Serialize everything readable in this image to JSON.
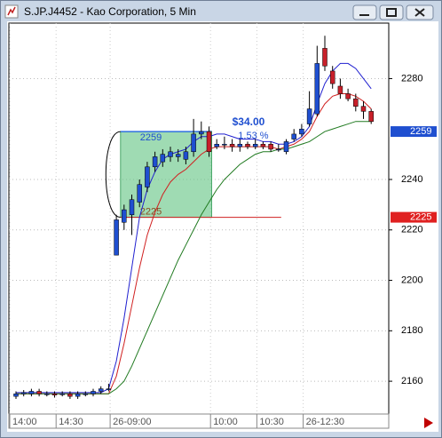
{
  "chart_data": {
    "type": "candlestick",
    "title": "S.JP.J4452 - Kao Corporation, 5 Min",
    "categories": [
      "14:00",
      null,
      null,
      null,
      null,
      null,
      "14:30",
      null,
      null,
      null,
      null,
      null,
      null,
      "26-09:00",
      null,
      null,
      null,
      null,
      null,
      null,
      null,
      null,
      null,
      null,
      null,
      null,
      "10:00",
      null,
      null,
      null,
      null,
      null,
      "10:30",
      null,
      null,
      null,
      null,
      null,
      "26-12:30",
      null,
      null,
      null,
      null,
      null,
      null,
      null,
      null
    ],
    "open": [
      2154,
      2155,
      2155,
      2156,
      2155,
      2155,
      2155,
      2155,
      2154,
      2155,
      2155,
      2156,
      2157,
      2210,
      2223,
      2226,
      2231,
      2237,
      2245,
      2247,
      2249,
      2249,
      2248,
      2251,
      2258,
      2259,
      2253,
      2254,
      2254,
      2253,
      2254,
      2253,
      2254,
      2254,
      2252,
      2251,
      2256,
      2258,
      2262,
      2266,
      2292,
      2283,
      2277,
      2274,
      2272,
      2269,
      2267
    ],
    "high": [
      2156,
      2156.5,
      2157,
      2157,
      2156,
      2156,
      2156,
      2156,
      2156,
      2156,
      2157,
      2158,
      2159,
      2226,
      2230,
      2234,
      2240,
      2247,
      2251,
      2252,
      2253,
      2252,
      2253,
      2264,
      2263,
      2261,
      2256,
      2257,
      2256,
      2256,
      2255,
      2256,
      2255,
      2255,
      2254,
      2256,
      2260,
      2262,
      2275,
      2293,
      2297,
      2285,
      2280,
      2276,
      2274,
      2271,
      2268
    ],
    "low": [
      2153,
      2154,
      2154,
      2154,
      2154,
      2153.5,
      2154,
      2153,
      2153,
      2154,
      2154,
      2155,
      2156,
      2210,
      2220,
      2218,
      2229,
      2235,
      2243,
      2245,
      2247,
      2247,
      2246,
      2249,
      2256,
      2249,
      2252,
      2252,
      2251,
      2251,
      2252,
      2252,
      2252,
      2251,
      2251,
      2250,
      2255,
      2257,
      2261,
      2265,
      2283,
      2276,
      2272,
      2271,
      2267,
      2264,
      2262
    ],
    "close": [
      2155,
      2155.5,
      2156,
      2155,
      2155,
      2154.5,
      2155,
      2154,
      2155,
      2155,
      2156,
      2157,
      2157,
      2224,
      2228,
      2232,
      2238,
      2245,
      2249,
      2250,
      2251,
      2250,
      2251,
      2258,
      2259,
      2251,
      2254,
      2254,
      2253,
      2254,
      2253,
      2254,
      2253,
      2252,
      2252,
      2255,
      2258,
      2260,
      2268,
      2286,
      2285,
      2278,
      2274,
      2272,
      2269,
      2267,
      2263
    ],
    "up_color": "#1f4fd0",
    "down_color": "#c8202a",
    "overlays": [
      {
        "color": "#2020d0",
        "values": [
          2155.5,
          2155.5,
          2155.5,
          2155.5,
          2155.5,
          2155.5,
          2155.5,
          2155.5,
          2155.5,
          2155.5,
          2155.5,
          2155.5,
          2157,
          2168,
          2185,
          2205,
          2225,
          2236,
          2243,
          2248,
          2250,
          2251,
          2252,
          2255,
          2257,
          2257,
          2258,
          2258,
          2257,
          2256,
          2256,
          2256,
          2255,
          2255,
          2254,
          2254,
          2255,
          2257,
          2261,
          2270,
          2278,
          2283,
          2286,
          2286,
          2284,
          2280,
          2276
        ]
      },
      {
        "color": "#d02020",
        "values": [
          2155,
          2155,
          2155,
          2155,
          2155,
          2155,
          2155,
          2155,
          2155,
          2155,
          2155,
          2155,
          2155,
          2162,
          2175,
          2190,
          2205,
          2218,
          2227,
          2234,
          2239,
          2242,
          2244,
          2247,
          2250,
          2252,
          2253,
          2253,
          2253,
          2253,
          2253,
          2253,
          2253,
          2253,
          2252,
          2253,
          2254,
          2256,
          2259,
          2265,
          2270,
          2273,
          2274,
          2274,
          2273,
          2271,
          2268
        ]
      },
      {
        "color": "#207a20",
        "values": [
          2155,
          2155,
          2155,
          2155,
          2155,
          2155,
          2155,
          2155,
          2155,
          2155,
          2155,
          2155,
          2155,
          2157,
          2160,
          2166,
          2173,
          2180,
          2187,
          2194,
          2201,
          2208,
          2214,
          2220,
          2226,
          2231,
          2236,
          2240,
          2243,
          2246,
          2248,
          2250,
          2251,
          2251,
          2252,
          2252,
          2253,
          2254,
          2255,
          2257,
          2259,
          2260,
          2261,
          2262,
          2263,
          2263,
          2263
        ]
      }
    ],
    "ylim": [
      2147,
      2302
    ],
    "yticks": [
      2160,
      2180,
      2200,
      2220,
      2240,
      2280
    ],
    "grid": true,
    "range": {
      "high": 2259,
      "low": 2225,
      "change": "$34.00",
      "change_pct": "1.53 %"
    },
    "price_markers": [
      {
        "value": 2259,
        "color": "#1f4fd0"
      },
      {
        "value": 2225,
        "color": "#e02020"
      }
    ]
  }
}
